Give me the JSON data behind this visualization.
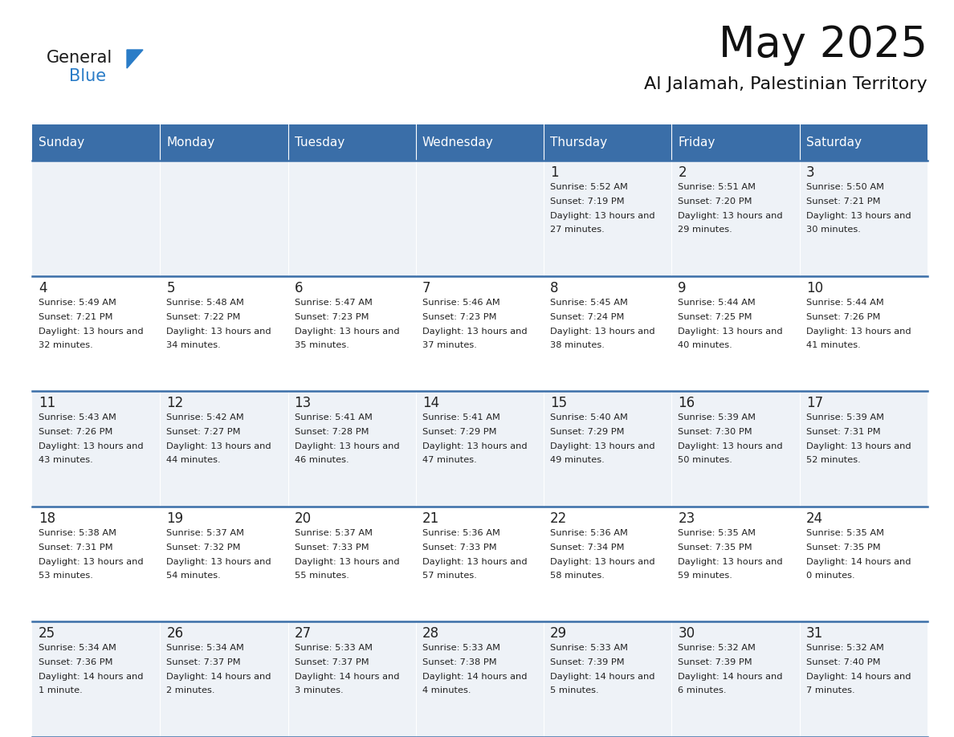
{
  "title": "May 2025",
  "subtitle": "Al Jalamah, Palestinian Territory",
  "days_of_week": [
    "Sunday",
    "Monday",
    "Tuesday",
    "Wednesday",
    "Thursday",
    "Friday",
    "Saturday"
  ],
  "header_bg": "#3a6ea8",
  "header_text": "#ffffff",
  "row_bg_even": "#eef2f7",
  "row_bg_odd": "#ffffff",
  "text_color": "#222222",
  "grid_line_color": "#3a6ea8",
  "title_color": "#111111",
  "subtitle_color": "#111111",
  "logo_general_color": "#1a1a1a",
  "logo_blue_color": "#2a7cc7",
  "calendar_data": [
    [
      null,
      null,
      null,
      null,
      {
        "day": 1,
        "sunrise": "5:52 AM",
        "sunset": "7:19 PM",
        "daylight": "13 hours and 27 minutes."
      },
      {
        "day": 2,
        "sunrise": "5:51 AM",
        "sunset": "7:20 PM",
        "daylight": "13 hours and 29 minutes."
      },
      {
        "day": 3,
        "sunrise": "5:50 AM",
        "sunset": "7:21 PM",
        "daylight": "13 hours and 30 minutes."
      }
    ],
    [
      {
        "day": 4,
        "sunrise": "5:49 AM",
        "sunset": "7:21 PM",
        "daylight": "13 hours and 32 minutes."
      },
      {
        "day": 5,
        "sunrise": "5:48 AM",
        "sunset": "7:22 PM",
        "daylight": "13 hours and 34 minutes."
      },
      {
        "day": 6,
        "sunrise": "5:47 AM",
        "sunset": "7:23 PM",
        "daylight": "13 hours and 35 minutes."
      },
      {
        "day": 7,
        "sunrise": "5:46 AM",
        "sunset": "7:23 PM",
        "daylight": "13 hours and 37 minutes."
      },
      {
        "day": 8,
        "sunrise": "5:45 AM",
        "sunset": "7:24 PM",
        "daylight": "13 hours and 38 minutes."
      },
      {
        "day": 9,
        "sunrise": "5:44 AM",
        "sunset": "7:25 PM",
        "daylight": "13 hours and 40 minutes."
      },
      {
        "day": 10,
        "sunrise": "5:44 AM",
        "sunset": "7:26 PM",
        "daylight": "13 hours and 41 minutes."
      }
    ],
    [
      {
        "day": 11,
        "sunrise": "5:43 AM",
        "sunset": "7:26 PM",
        "daylight": "13 hours and 43 minutes."
      },
      {
        "day": 12,
        "sunrise": "5:42 AM",
        "sunset": "7:27 PM",
        "daylight": "13 hours and 44 minutes."
      },
      {
        "day": 13,
        "sunrise": "5:41 AM",
        "sunset": "7:28 PM",
        "daylight": "13 hours and 46 minutes."
      },
      {
        "day": 14,
        "sunrise": "5:41 AM",
        "sunset": "7:29 PM",
        "daylight": "13 hours and 47 minutes."
      },
      {
        "day": 15,
        "sunrise": "5:40 AM",
        "sunset": "7:29 PM",
        "daylight": "13 hours and 49 minutes."
      },
      {
        "day": 16,
        "sunrise": "5:39 AM",
        "sunset": "7:30 PM",
        "daylight": "13 hours and 50 minutes."
      },
      {
        "day": 17,
        "sunrise": "5:39 AM",
        "sunset": "7:31 PM",
        "daylight": "13 hours and 52 minutes."
      }
    ],
    [
      {
        "day": 18,
        "sunrise": "5:38 AM",
        "sunset": "7:31 PM",
        "daylight": "13 hours and 53 minutes."
      },
      {
        "day": 19,
        "sunrise": "5:37 AM",
        "sunset": "7:32 PM",
        "daylight": "13 hours and 54 minutes."
      },
      {
        "day": 20,
        "sunrise": "5:37 AM",
        "sunset": "7:33 PM",
        "daylight": "13 hours and 55 minutes."
      },
      {
        "day": 21,
        "sunrise": "5:36 AM",
        "sunset": "7:33 PM",
        "daylight": "13 hours and 57 minutes."
      },
      {
        "day": 22,
        "sunrise": "5:36 AM",
        "sunset": "7:34 PM",
        "daylight": "13 hours and 58 minutes."
      },
      {
        "day": 23,
        "sunrise": "5:35 AM",
        "sunset": "7:35 PM",
        "daylight": "13 hours and 59 minutes."
      },
      {
        "day": 24,
        "sunrise": "5:35 AM",
        "sunset": "7:35 PM",
        "daylight": "14 hours and 0 minutes."
      }
    ],
    [
      {
        "day": 25,
        "sunrise": "5:34 AM",
        "sunset": "7:36 PM",
        "daylight": "14 hours and 1 minute."
      },
      {
        "day": 26,
        "sunrise": "5:34 AM",
        "sunset": "7:37 PM",
        "daylight": "14 hours and 2 minutes."
      },
      {
        "day": 27,
        "sunrise": "5:33 AM",
        "sunset": "7:37 PM",
        "daylight": "14 hours and 3 minutes."
      },
      {
        "day": 28,
        "sunrise": "5:33 AM",
        "sunset": "7:38 PM",
        "daylight": "14 hours and 4 minutes."
      },
      {
        "day": 29,
        "sunrise": "5:33 AM",
        "sunset": "7:39 PM",
        "daylight": "14 hours and 5 minutes."
      },
      {
        "day": 30,
        "sunrise": "5:32 AM",
        "sunset": "7:39 PM",
        "daylight": "14 hours and 6 minutes."
      },
      {
        "day": 31,
        "sunrise": "5:32 AM",
        "sunset": "7:40 PM",
        "daylight": "14 hours and 7 minutes."
      }
    ]
  ]
}
